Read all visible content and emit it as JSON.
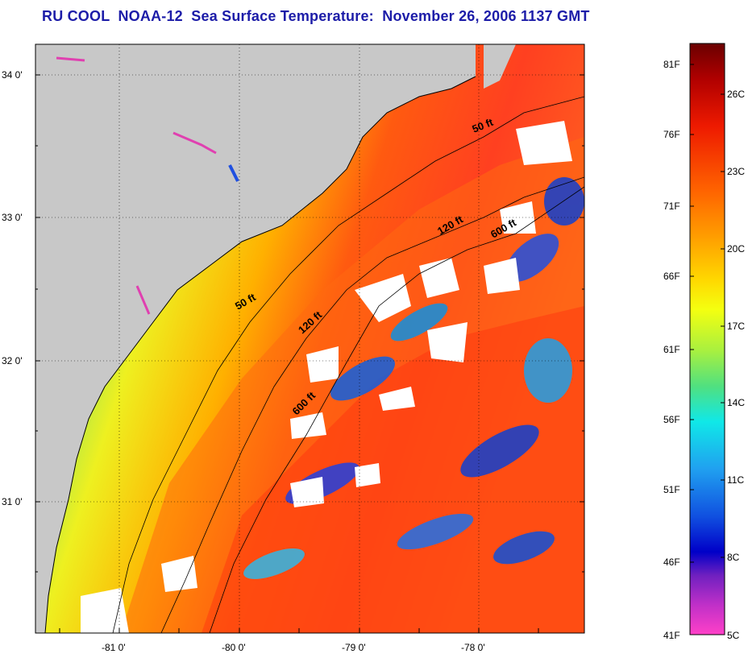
{
  "title": "RU COOL  NOAA-12  Sea Surface Temperature:  November 26, 2006 1137 GMT",
  "map": {
    "lat_ticks": [
      "34 0'",
      "33 0'",
      "32 0'",
      "31 0'"
    ],
    "lon_ticks": [
      "-81 0'",
      "-80 0'",
      "-79 0'",
      "-78 0'"
    ],
    "land_color": "#c8c8c8",
    "cloud_color": "#ffffff"
  },
  "contours": {
    "inner": [
      {
        "label": "50 ft"
      },
      {
        "label": "50 ft"
      }
    ],
    "shelf": [
      {
        "label": "120 ft"
      },
      {
        "label": "120 ft"
      }
    ],
    "outer": [
      {
        "label": "600 ft"
      },
      {
        "label": "600 ft"
      }
    ]
  },
  "colorbar": {
    "fahrenheit": [
      "81F",
      "76F",
      "71F",
      "66F",
      "61F",
      "56F",
      "51F",
      "46F",
      "41F"
    ],
    "celsius": [
      "26C",
      "23C",
      "20C",
      "17C",
      "14C",
      "11C",
      "8C",
      "5C"
    ]
  }
}
